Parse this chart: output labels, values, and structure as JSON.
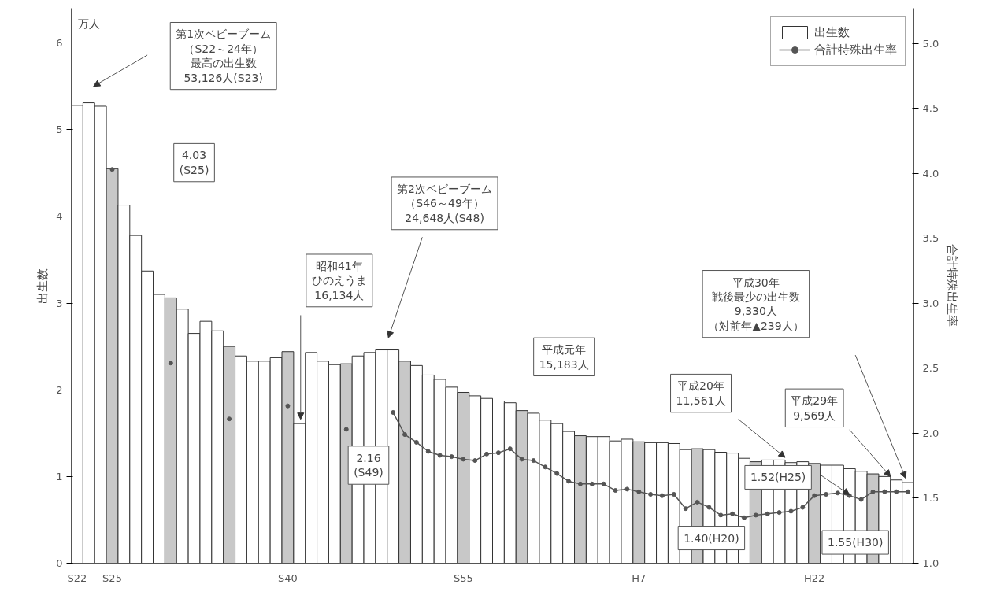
{
  "chart_data": {
    "type": "bar",
    "ylabel": "出生数",
    "y2label": "合計特殊出生率",
    "categories": [
      "S22",
      null,
      null,
      "S25",
      null,
      null,
      null,
      null,
      null,
      null,
      null,
      null,
      null,
      null,
      null,
      null,
      null,
      null,
      "S40",
      null,
      null,
      null,
      null,
      null,
      null,
      null,
      null,
      null,
      null,
      null,
      null,
      null,
      null,
      "S55",
      null,
      null,
      null,
      null,
      null,
      null,
      null,
      null,
      null,
      null,
      null,
      null,
      null,
      null,
      "H7",
      null,
      null,
      null,
      null,
      null,
      null,
      null,
      null,
      null,
      null,
      null,
      null,
      null,
      null,
      "H22",
      null,
      null,
      null,
      null,
      null,
      null,
      null,
      null
    ],
    "series": [
      {
        "name": "出生数",
        "color": "#ffffff",
        "colors": [
          "#ffffff",
          "#ffffff",
          "#ffffff",
          "#c8c8c8",
          "#ffffff",
          "#ffffff",
          "#ffffff",
          "#ffffff",
          "#c8c8c8",
          "#ffffff",
          "#ffffff",
          "#ffffff",
          "#ffffff",
          "#c8c8c8",
          "#ffffff",
          "#ffffff",
          "#ffffff",
          "#ffffff",
          "#c8c8c8",
          "#ffffff",
          "#ffffff",
          "#ffffff",
          "#ffffff",
          "#c8c8c8",
          "#ffffff",
          "#ffffff",
          "#ffffff",
          "#ffffff",
          "#c8c8c8",
          "#ffffff",
          "#ffffff",
          "#ffffff",
          "#ffffff",
          "#c8c8c8",
          "#ffffff",
          "#ffffff",
          "#ffffff",
          "#ffffff",
          "#c8c8c8",
          "#ffffff",
          "#ffffff",
          "#ffffff",
          "#ffffff",
          "#c8c8c8",
          "#ffffff",
          "#ffffff",
          "#ffffff",
          "#ffffff",
          "#c8c8c8",
          "#ffffff",
          "#ffffff",
          "#ffffff",
          "#ffffff",
          "#c8c8c8",
          "#ffffff",
          "#ffffff",
          "#ffffff",
          "#ffffff",
          "#c8c8c8",
          "#ffffff",
          "#ffffff",
          "#ffffff",
          "#ffffff",
          "#c8c8c8",
          "#ffffff",
          "#ffffff",
          "#ffffff",
          "#ffffff",
          "#c8c8c8",
          "#ffffff",
          "#ffffff",
          "#ffffff"
        ],
        "values": [
          5.28,
          5.31,
          5.27,
          4.55,
          4.13,
          3.78,
          3.37,
          3.1,
          3.06,
          2.93,
          2.65,
          2.79,
          2.68,
          2.5,
          2.39,
          2.33,
          2.33,
          2.37,
          2.44,
          1.61,
          2.43,
          2.33,
          2.29,
          2.3,
          2.39,
          2.43,
          2.46,
          2.46,
          2.33,
          2.28,
          2.17,
          2.12,
          2.03,
          1.97,
          1.93,
          1.9,
          1.87,
          1.85,
          1.76,
          1.73,
          1.65,
          1.61,
          1.52,
          1.47,
          1.46,
          1.46,
          1.41,
          1.43,
          1.4,
          1.39,
          1.39,
          1.38,
          1.31,
          1.32,
          1.31,
          1.28,
          1.27,
          1.21,
          1.17,
          1.19,
          1.19,
          1.16,
          1.17,
          1.15,
          1.13,
          1.13,
          1.09,
          1.06,
          1.03,
          1.0,
          0.96,
          0.93
        ]
      },
      {
        "name": "合計特殊出生率",
        "type": "line",
        "axis": "y2",
        "color": "#555555",
        "marker": "circle",
        "line_style": "solid",
        "values": [
          null,
          null,
          null,
          4.03,
          null,
          null,
          null,
          null,
          2.54,
          null,
          null,
          null,
          null,
          2.11,
          null,
          null,
          null,
          null,
          2.21,
          null,
          null,
          null,
          null,
          2.03,
          null,
          null,
          null,
          2.16,
          1.99,
          1.93,
          1.86,
          1.83,
          1.82,
          1.8,
          1.79,
          1.84,
          1.85,
          1.88,
          1.8,
          1.79,
          1.74,
          1.69,
          1.63,
          1.61,
          1.61,
          1.61,
          1.56,
          1.57,
          1.55,
          1.53,
          1.52,
          1.53,
          1.42,
          1.47,
          1.43,
          1.37,
          1.38,
          1.35,
          1.37,
          1.38,
          1.39,
          1.4,
          1.43,
          1.52,
          1.53,
          1.54,
          1.52,
          1.49,
          1.55,
          1.55,
          1.55,
          1.55
        ]
      }
    ],
    "ylim": [
      0,
      6.4
    ],
    "yticks": [
      0,
      1,
      2,
      3,
      4,
      5,
      6
    ],
    "y2lim": [
      1.0,
      5.27
    ],
    "y2ticks": [
      {
        "value": 1.0,
        "label": "1.0"
      },
      {
        "value": 1.5,
        "label": "1.5"
      },
      {
        "value": 2.0,
        "label": "2.0"
      },
      {
        "value": 2.5,
        "label": "2.5"
      },
      {
        "value": 3.0,
        "label": "3.0"
      },
      {
        "value": 3.5,
        "label": "3.5"
      },
      {
        "value": 4.0,
        "label": "4.0"
      },
      {
        "value": 4.5,
        "label": "4.5"
      },
      {
        "value": 5.0,
        "label": "5.0"
      }
    ],
    "grid": false,
    "legend": "top right",
    "annotations": [
      "万人",
      "第1次ベビーブーム（S22～24年）最高の出生数53,126人(S23)",
      "4.03\n(S25)",
      "第2次ベビーブーム（S46～49年）24,648人(S48)",
      "昭和41年ひのえうま16,134人",
      "2.16\n(S49)",
      "平成元年\n15,183人",
      "平成20年\n11,561人",
      "平成29年\n9,569人",
      "平成30年戦後最少の出生数9,330人（対前年▲239人）",
      "1.52(H25)",
      "1.40(H20)",
      "1.55(H30)"
    ]
  }
}
